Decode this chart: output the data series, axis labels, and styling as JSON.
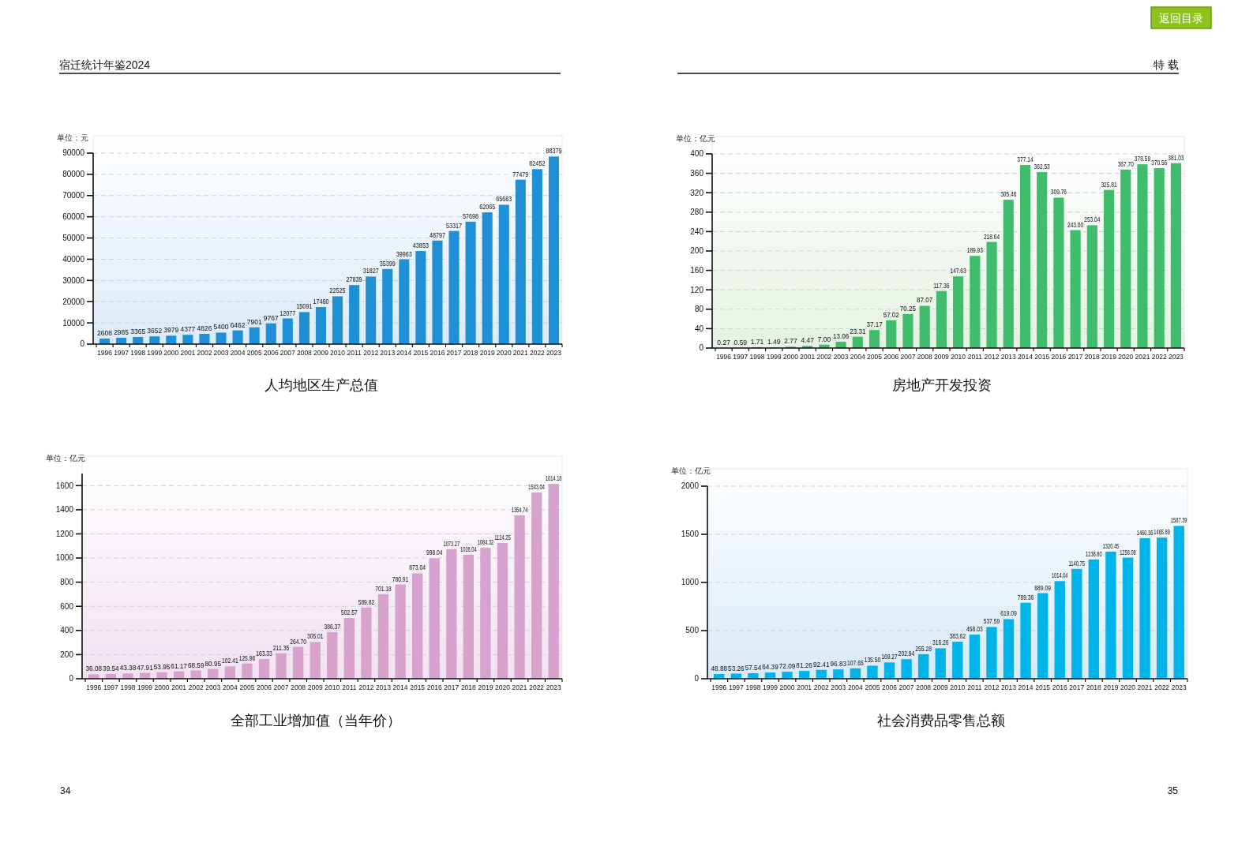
{
  "chart_data": [
    {
      "type": "bar",
      "title": "人均地区生产总值",
      "ylabel": "单位：元",
      "color": "#1f8fd6",
      "grid": "y",
      "ylim": [
        0,
        90000
      ],
      "yticks": [
        0,
        10000,
        20000,
        30000,
        40000,
        50000,
        60000,
        70000,
        80000,
        90000
      ],
      "categories": [
        "1996",
        "1997",
        "1998",
        "1999",
        "2000",
        "2001",
        "2002",
        "2003",
        "2004",
        "2005",
        "2006",
        "2007",
        "2008",
        "2009",
        "2010",
        "2011",
        "2012",
        "2013",
        "2014",
        "2015",
        "2016",
        "2017",
        "2018",
        "2019",
        "2020",
        "2021",
        "2022",
        "2023"
      ],
      "values": [
        2608,
        2985,
        3365,
        3652,
        3979,
        4377,
        4826,
        5400,
        6462,
        7901,
        9767,
        12077,
        15091,
        17460,
        22525,
        27839,
        31827,
        35399,
        39963,
        43853,
        48797,
        53317,
        57698,
        62065,
        65663,
        77479,
        82452,
        88379
      ],
      "value_labels": [
        "2608",
        "2985",
        "3365",
        "3652",
        "3979",
        "4377",
        "4826",
        "5400",
        "6462",
        "7901",
        "9767",
        "12077",
        "15091",
        "17460",
        "22525",
        "27839",
        "31827",
        "35399",
        "39963",
        "43853",
        "48797",
        "53317",
        "57698",
        "62065",
        "65663",
        "77479",
        "82452",
        "88379"
      ],
      "annotations": [
        "宿迁统计年鉴2024",
        "34"
      ]
    },
    {
      "type": "bar",
      "title": "房地产开发投资",
      "ylabel": "单位：亿元",
      "color": "#3fbc6c",
      "grid": "y",
      "ylim": [
        0,
        400
      ],
      "yticks": [
        0,
        40,
        80,
        120,
        160,
        200,
        240,
        280,
        320,
        360,
        400
      ],
      "categories": [
        "1996",
        "1997",
        "1998",
        "1999",
        "2000",
        "2001",
        "2002",
        "2003",
        "2004",
        "2005",
        "2006",
        "2007",
        "2008",
        "2009",
        "2010",
        "2011",
        "2012",
        "2013",
        "2014",
        "2015",
        "2016",
        "2017",
        "2018",
        "2019",
        "2020",
        "2021",
        "2022",
        "2023"
      ],
      "values": [
        0.27,
        0.59,
        1.71,
        1.49,
        2.77,
        4.47,
        7.0,
        13.06,
        23.31,
        37.17,
        57.02,
        70.25,
        87.07,
        117.36,
        147.63,
        189.93,
        218.64,
        305.46,
        377.14,
        362.53,
        309.76,
        243.0,
        253.04,
        325.81,
        367.7,
        378.59,
        370.56,
        381.03
      ],
      "value_labels": [
        "0.27",
        "0.59",
        "1.71",
        "1.49",
        "2.77",
        "4.47",
        "7.00",
        "13.06",
        "23.31",
        "37.17",
        "57.02",
        "70.25",
        "87.07",
        "117.36",
        "147.63",
        "189.93",
        "218.64",
        "305.46",
        "377.14",
        "362.53",
        "309.76",
        "243.00",
        "253.04",
        "325.81",
        "367.70",
        "378.59",
        "370.56",
        "381.03"
      ],
      "annotations": [
        "特 载",
        "返回目录",
        "35"
      ]
    },
    {
      "type": "bar",
      "title": "全部工业增加值（当年价）",
      "ylabel": "单位：亿元",
      "color": "#d8a2cf",
      "grid": "y",
      "ylim": [
        0,
        1700
      ],
      "yticks": [
        0,
        200,
        400,
        600,
        800,
        1000,
        1200,
        1400,
        1600
      ],
      "categories": [
        "1996",
        "1997",
        "1998",
        "1999",
        "2000",
        "2001",
        "2002",
        "2003",
        "2004",
        "2005",
        "2006",
        "2007",
        "2008",
        "2009",
        "2010",
        "2011",
        "2012",
        "2013",
        "2014",
        "2015",
        "2016",
        "2017",
        "2018",
        "2019",
        "2020",
        "2021",
        "2022",
        "2023"
      ],
      "values": [
        36.08,
        39.54,
        43.38,
        47.91,
        53.95,
        61.17,
        68.59,
        80.95,
        102.41,
        125.96,
        163.33,
        211.35,
        264.7,
        305.01,
        386.37,
        502.57,
        589.82,
        701.18,
        780.91,
        873.04,
        998.04,
        1073.27,
        1028.04,
        1084.32,
        1124.25,
        1354.74,
        1543.04,
        1614.18
      ],
      "value_labels": [
        "36.08",
        "39.54",
        "43.38",
        "47.91",
        "53.95",
        "61.17",
        "68.59",
        "80.95",
        "102.41",
        "125.96",
        "163.33",
        "211.35",
        "264.70",
        "305.01",
        "386.37",
        "502.57",
        "589.82",
        "701.18",
        "780.91",
        "873.04",
        "998.04",
        "1073.27",
        "1028.04",
        "1084.32",
        "1124.25",
        "1354.74",
        "1543.04",
        "1614.18"
      ]
    },
    {
      "type": "bar",
      "title": "社会消费品零售总额",
      "ylabel": "单位：亿元",
      "color": "#00b3e8",
      "grid": "y",
      "ylim": [
        0,
        2000
      ],
      "yticks": [
        0,
        500,
        1000,
        1500,
        2000
      ],
      "categories": [
        "1996",
        "1997",
        "1998",
        "1999",
        "2000",
        "2001",
        "2002",
        "2003",
        "2004",
        "2005",
        "2006",
        "2007",
        "2008",
        "2009",
        "2010",
        "2011",
        "2012",
        "2013",
        "2014",
        "2015",
        "2016",
        "2017",
        "2018",
        "2019",
        "2020",
        "2021",
        "2022",
        "2023"
      ],
      "values": [
        48.88,
        53.26,
        57.54,
        64.39,
        72.09,
        81.26,
        92.41,
        96.83,
        107.65,
        135.5,
        169.27,
        202.94,
        255.28,
        316.26,
        383.62,
        458.03,
        537.59,
        619.09,
        789.36,
        889.09,
        1014.04,
        1140.75,
        1238.8,
        1320.45,
        1258.08,
        1460.36,
        1465.89,
        1587.39
      ],
      "value_labels": [
        "48.88",
        "53.26",
        "57.54",
        "64.39",
        "72.09",
        "81.26",
        "92.41",
        "96.83",
        "107.65",
        "135.50",
        "169.27",
        "202.94",
        "255.28",
        "316.26",
        "383.62",
        "458.03",
        "537.59",
        "619.09",
        "789.36",
        "889.09",
        "1014.04",
        "1140.75",
        "1238.80",
        "1320.45",
        "1258.08",
        "1460.36",
        "1465.89",
        "1587.39"
      ]
    }
  ]
}
